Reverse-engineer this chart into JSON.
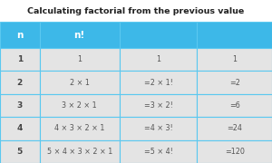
{
  "title": "Calculating factorial from the previous value",
  "header_bg": "#3db8e8",
  "header_text_color": "#ffffff",
  "row_bg": "#e4e4e4",
  "cell_border_color": "#5ac8f0",
  "title_color": "#222222",
  "columns": [
    "n",
    "n!",
    "",
    ""
  ],
  "rows": [
    [
      "1",
      "1",
      "1",
      "1"
    ],
    [
      "2",
      "2 × 1",
      "=2 × 1!",
      "=2"
    ],
    [
      "3",
      "3 × 2 × 1",
      "=3 × 2!",
      "=6"
    ],
    [
      "4",
      "4 × 3 × 2 × 1",
      "=4 × 3!",
      "=24"
    ],
    [
      "5",
      "5 × 4 × 3 × 2 × 1",
      "=5 × 4!",
      "=120"
    ]
  ],
  "figsize": [
    3.0,
    1.8
  ],
  "dpi": 100,
  "title_fontsize": 6.8,
  "header_fontsize": 7.5,
  "col1_fontsize": 6.5,
  "data_fontsize": 5.8
}
